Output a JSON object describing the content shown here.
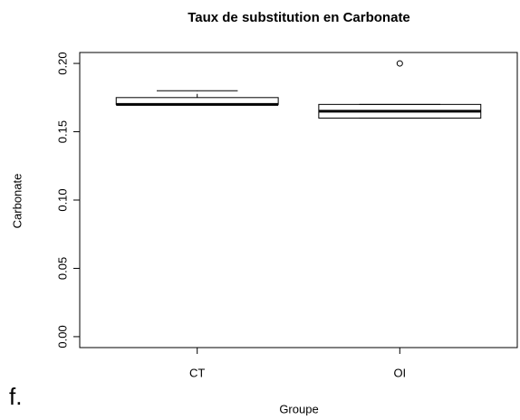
{
  "chart_data": {
    "type": "box",
    "title": "Taux de substitution en Carbonate",
    "xlabel": "Groupe",
    "ylabel": "Carbonate",
    "annotation": "f.",
    "categories": [
      "CT",
      "OI"
    ],
    "min": [
      0.17,
      0.16
    ],
    "q1": [
      0.17,
      0.16
    ],
    "median": [
      0.17,
      0.165
    ],
    "q3": [
      0.175,
      0.17
    ],
    "max": [
      0.18,
      0.17
    ],
    "outliers": [
      [],
      [
        0.2
      ]
    ],
    "color": "#000000",
    "ylim": [
      -0.008,
      0.208
    ],
    "yticks": [
      {
        "value": 0,
        "label": "0.00"
      },
      {
        "value": 0.05,
        "label": "0.05"
      },
      {
        "value": 0.1,
        "label": "0.10"
      },
      {
        "value": 0.15,
        "label": "0.15"
      },
      {
        "value": 0.2,
        "label": "0.20"
      }
    ],
    "grid": false
  }
}
